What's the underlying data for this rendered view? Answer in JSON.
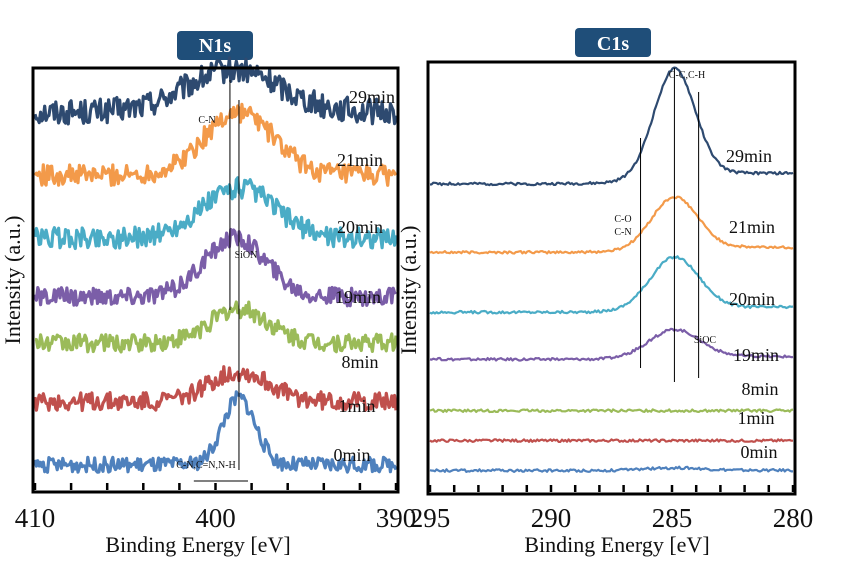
{
  "chart_data": [
    {
      "type": "line",
      "title": "N1s",
      "xlabel": "Binding Energy [eV]",
      "ylabel": "Intensity (a.u.)",
      "xlim": [
        410,
        390
      ],
      "x_reversed": true,
      "xticks": [
        410,
        400,
        390
      ],
      "minor_tick_step": 2,
      "grid": false,
      "legend": "inline labels on right",
      "series": [
        {
          "name": "29min",
          "color": "#2e4a70",
          "baseline": 0.9,
          "peak_center": 399.0,
          "peak_height": 0.1,
          "peak_width": 2.6,
          "noise": 0.03
        },
        {
          "name": "21min",
          "color": "#f39a4a",
          "baseline": 0.75,
          "peak_center": 398.7,
          "peak_height": 0.15,
          "peak_width": 1.9,
          "noise": 0.025
        },
        {
          "name": "20min",
          "color": "#4aacc6",
          "baseline": 0.6,
          "peak_center": 398.7,
          "peak_height": 0.12,
          "peak_width": 2.0,
          "noise": 0.025
        },
        {
          "name": "19min",
          "color": "#7b5ea8",
          "baseline": 0.46,
          "peak_center": 398.9,
          "peak_height": 0.14,
          "peak_width": 1.7,
          "noise": 0.022
        },
        {
          "name": "8min",
          "color": "#9bbb59",
          "baseline": 0.35,
          "peak_center": 398.7,
          "peak_height": 0.08,
          "peak_width": 1.6,
          "noise": 0.022
        },
        {
          "name": "1min",
          "color": "#c0504d",
          "baseline": 0.21,
          "peak_center": 398.7,
          "peak_height": 0.07,
          "peak_width": 1.7,
          "noise": 0.022
        },
        {
          "name": "0min",
          "color": "#4f81bd",
          "baseline": 0.06,
          "peak_center": 398.7,
          "peak_height": 0.16,
          "peak_width": 0.9,
          "noise": 0.018
        }
      ],
      "reference_lines": [
        {
          "x": 399.2,
          "label": "C-N"
        },
        {
          "x": 398.7,
          "label": "SiON"
        }
      ],
      "annotations": [
        {
          "text": "C-N",
          "near_x": 402.0
        },
        {
          "text": "SiON",
          "near_x": 398.5
        },
        {
          "text": "C-N,C=N,N-H",
          "near_x": 400.0
        }
      ]
    },
    {
      "type": "line",
      "title": "C1s",
      "xlabel": "Binding Energy [eV]",
      "ylabel": "Intensity (a.u.)",
      "xlim": [
        295,
        280
      ],
      "x_reversed": true,
      "xticks": [
        295,
        290,
        285,
        280
      ],
      "minor_tick_step": 1,
      "grid": false,
      "legend": "inline labels on right",
      "series": [
        {
          "name": "29min",
          "color": "#2e4a70",
          "baseline": 0.72,
          "peak_center": 284.9,
          "peak_height": 0.25,
          "peak_width": 0.85
        },
        {
          "name": "21min",
          "color": "#f39a4a",
          "baseline": 0.56,
          "peak_center": 284.9,
          "peak_height": 0.12,
          "peak_width": 0.95
        },
        {
          "name": "20min",
          "color": "#4aacc6",
          "baseline": 0.42,
          "peak_center": 284.9,
          "peak_height": 0.12,
          "peak_width": 1.0
        },
        {
          "name": "19min",
          "color": "#7b5ea8",
          "baseline": 0.31,
          "peak_center": 284.9,
          "peak_height": 0.065,
          "peak_width": 1.05
        },
        {
          "name": "8min",
          "color": "#9bbb59",
          "baseline": 0.19,
          "peak_center": 284.9,
          "peak_height": 0.0,
          "peak_width": 1.0
        },
        {
          "name": "1min",
          "color": "#c0504d",
          "baseline": 0.12,
          "peak_center": 284.9,
          "peak_height": 0.0,
          "peak_width": 1.0
        },
        {
          "name": "0min",
          "color": "#4f81bd",
          "baseline": 0.05,
          "peak_center": 284.9,
          "peak_height": 0.006,
          "peak_width": 1.2
        }
      ],
      "reference_lines": [
        {
          "x": 286.3,
          "label": "C-O C-N"
        },
        {
          "x": 284.9,
          "label": "C-C,C-H"
        },
        {
          "x": 283.9,
          "label": "SiOC"
        }
      ],
      "annotations": [
        {
          "text": "C-C,C-H",
          "near_x": 284.0
        },
        {
          "text": "C-O",
          "near_x": 287.0
        },
        {
          "text": "C-N",
          "near_x": 287.0
        },
        {
          "text": "SiOC",
          "near_x": 283.5
        }
      ]
    }
  ]
}
